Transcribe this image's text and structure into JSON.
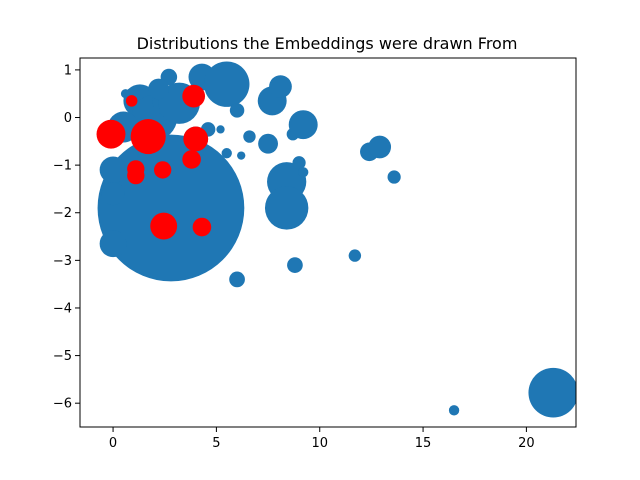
{
  "chart_data": {
    "type": "scatter",
    "title": "Distributions the Embeddings were drawn From",
    "xlabel": "",
    "ylabel": "",
    "xlim": [
      -1.6,
      22.4
    ],
    "ylim": [
      -6.5,
      1.25
    ],
    "xticks": [
      0,
      5,
      10,
      15,
      20
    ],
    "yticks": [
      1,
      0,
      -1,
      -2,
      -3,
      -4,
      -5,
      -6
    ],
    "grid": false,
    "series": [
      {
        "color": "#1f77b4",
        "points": [
          {
            "x": 2.8,
            "y": -1.9,
            "r": 3.55
          },
          {
            "x": 1.3,
            "y": 0.35,
            "r": 0.8
          },
          {
            "x": 2.0,
            "y": 0.0,
            "r": 1.1
          },
          {
            "x": 2.6,
            "y": 0.35,
            "r": 0.7
          },
          {
            "x": 3.2,
            "y": 0.3,
            "r": 1.0
          },
          {
            "x": 4.3,
            "y": 0.85,
            "r": 0.65
          },
          {
            "x": 5.5,
            "y": 0.7,
            "r": 1.1
          },
          {
            "x": 2.7,
            "y": 0.85,
            "r": 0.4
          },
          {
            "x": 2.2,
            "y": 0.6,
            "r": 0.5
          },
          {
            "x": 0.6,
            "y": 0.5,
            "r": 0.22
          },
          {
            "x": 0.5,
            "y": -0.2,
            "r": 0.75
          },
          {
            "x": 0.0,
            "y": -1.1,
            "r": 0.65
          },
          {
            "x": 0.0,
            "y": -1.6,
            "r": 0.55
          },
          {
            "x": 0.0,
            "y": -2.65,
            "r": 0.65
          },
          {
            "x": 4.0,
            "y": -0.45,
            "r": 0.6
          },
          {
            "x": 4.6,
            "y": -0.25,
            "r": 0.35
          },
          {
            "x": 5.2,
            "y": -0.25,
            "r": 0.2
          },
          {
            "x": 6.0,
            "y": 0.15,
            "r": 0.35
          },
          {
            "x": 5.5,
            "y": -0.75,
            "r": 0.25
          },
          {
            "x": 6.6,
            "y": -0.4,
            "r": 0.3
          },
          {
            "x": 6.2,
            "y": -0.8,
            "r": 0.2
          },
          {
            "x": 7.5,
            "y": -0.55,
            "r": 0.48
          },
          {
            "x": 7.7,
            "y": 0.35,
            "r": 0.7
          },
          {
            "x": 8.1,
            "y": 0.65,
            "r": 0.55
          },
          {
            "x": 8.4,
            "y": -1.35,
            "r": 0.95
          },
          {
            "x": 8.4,
            "y": -1.9,
            "r": 1.05
          },
          {
            "x": 8.7,
            "y": -0.35,
            "r": 0.3
          },
          {
            "x": 9.0,
            "y": -0.95,
            "r": 0.32
          },
          {
            "x": 9.2,
            "y": -1.15,
            "r": 0.25
          },
          {
            "x": 9.2,
            "y": -0.15,
            "r": 0.7
          },
          {
            "x": 8.8,
            "y": -3.1,
            "r": 0.38
          },
          {
            "x": 6.0,
            "y": -3.4,
            "r": 0.38
          },
          {
            "x": 11.7,
            "y": -2.9,
            "r": 0.3
          },
          {
            "x": 12.4,
            "y": -0.72,
            "r": 0.45
          },
          {
            "x": 12.9,
            "y": -0.62,
            "r": 0.55
          },
          {
            "x": 13.6,
            "y": -1.25,
            "r": 0.32
          },
          {
            "x": 16.5,
            "y": -6.15,
            "r": 0.25
          },
          {
            "x": 21.3,
            "y": -5.78,
            "r": 1.2
          }
        ]
      },
      {
        "color": "#ff0000",
        "points": [
          {
            "x": -0.1,
            "y": -0.35,
            "r": 0.7
          },
          {
            "x": 1.7,
            "y": -0.4,
            "r": 0.85
          },
          {
            "x": 0.9,
            "y": 0.35,
            "r": 0.28
          },
          {
            "x": 3.9,
            "y": 0.45,
            "r": 0.55
          },
          {
            "x": 4.0,
            "y": -0.45,
            "r": 0.6
          },
          {
            "x": 3.8,
            "y": -0.88,
            "r": 0.45
          },
          {
            "x": 1.1,
            "y": -1.08,
            "r": 0.42
          },
          {
            "x": 1.1,
            "y": -1.22,
            "r": 0.42
          },
          {
            "x": 2.4,
            "y": -1.1,
            "r": 0.42
          },
          {
            "x": 2.45,
            "y": -2.28,
            "r": 0.65
          },
          {
            "x": 4.3,
            "y": -2.3,
            "r": 0.45
          }
        ]
      }
    ]
  }
}
